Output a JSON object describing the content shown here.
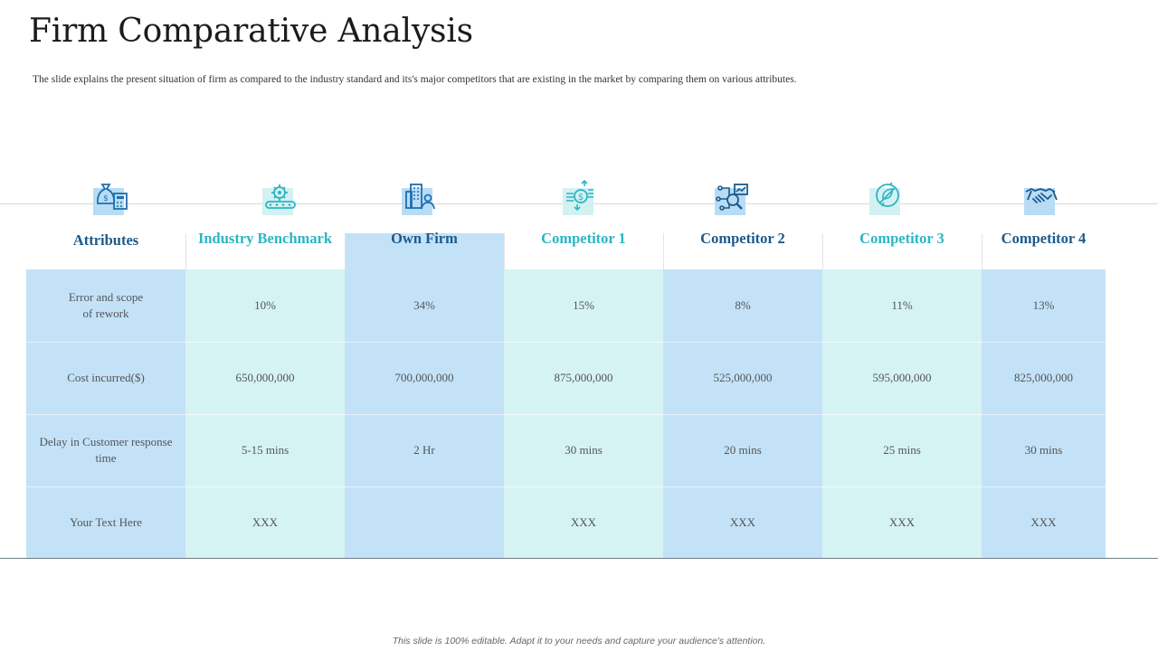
{
  "title": "Firm Comparative Analysis",
  "subtitle": "The slide explains the present situation of firm as compared  to the industry standard  and its's major competitors  that are existing in the market by comparing  them on various attributes.",
  "footer": "This slide is 100% editable. Adapt it to your needs and capture your audience's attention.",
  "colors": {
    "dark_blue_bg": "#c3e2f8",
    "light_cyan_bg": "#d6f3f3",
    "heading_light": "#2bb5c5",
    "heading_dark": "#1e5a8a"
  },
  "columns": [
    {
      "header": "Attributes",
      "icon": "money-bag-calculator-icon",
      "style": "dark",
      "cells": [
        "Error and scope\nof rework",
        "Cost incurred($)",
        "Delay in Customer response\ntime",
        "Your Text Here"
      ]
    },
    {
      "header": "Industry Benchmark",
      "icon": "gear-conveyor-icon",
      "style": "light",
      "cells": [
        "10%",
        "650,000,000",
        "5-15 mins",
        "XXX"
      ]
    },
    {
      "header": "Own Firm",
      "icon": "office-building-person-icon",
      "style": "dark",
      "cells": [
        "34%",
        "700,000,000",
        "2 Hr",
        ""
      ]
    },
    {
      "header": "Competitor 1",
      "icon": "dollar-exchange-icon",
      "style": "light",
      "cells": [
        "15%",
        "875,000,000",
        "30 mins",
        "XXX"
      ]
    },
    {
      "header": "Competitor 2",
      "icon": "network-analysis-icon",
      "style": "dark",
      "cells": [
        "8%",
        "525,000,000",
        "20 mins",
        "XXX"
      ]
    },
    {
      "header": "Competitor 3",
      "icon": "leaf-no-sign-icon",
      "style": "light",
      "cells": [
        "11%",
        "595,000,000",
        "25 mins",
        "XXX"
      ]
    },
    {
      "header": "Competitor 4",
      "icon": "handshake-icon",
      "style": "dark",
      "cells": [
        "13%",
        "825,000,000",
        "30 mins",
        "XXX"
      ]
    }
  ]
}
